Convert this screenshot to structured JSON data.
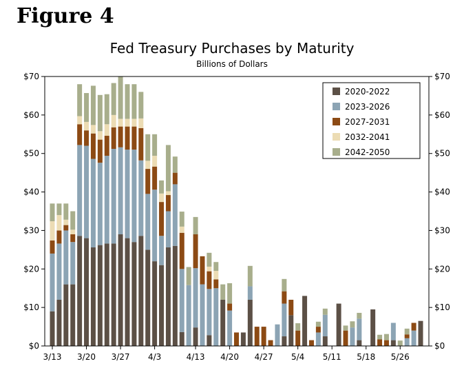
{
  "figure_label": "Figure 4",
  "chart_data": {
    "type": "bar",
    "stacked": true,
    "title": "Fed Treasury Purchases by Maturity",
    "subtitle": "Billions of Dollars",
    "xlabel": "",
    "ylabel": "",
    "ylim": [
      0,
      70
    ],
    "yticks": [
      0,
      10,
      20,
      30,
      40,
      50,
      60,
      70
    ],
    "ytick_labels": [
      "$0",
      "$10",
      "$20",
      "$30",
      "$40",
      "$50",
      "$60",
      "$70"
    ],
    "xtick_labels": [
      "3/13",
      "3/20",
      "3/27",
      "4/3",
      "4/13",
      "4/20",
      "4/27",
      "5/4",
      "5/11",
      "5/18",
      "5/26"
    ],
    "xtick_index": [
      0,
      5,
      10,
      15,
      21,
      26,
      31,
      36,
      41,
      46,
      51
    ],
    "legend_position": "top-right",
    "series": [
      {
        "name": "2020-2022",
        "color": "#5c5046",
        "values": [
          9,
          12,
          16,
          16,
          28.6,
          28,
          25.6,
          26.2,
          26.6,
          26.6,
          29,
          28,
          27,
          28.6,
          25,
          22,
          21,
          25.6,
          26,
          3.6,
          0,
          4.8,
          0,
          2.8,
          0,
          12,
          0,
          0,
          3.5,
          12,
          0,
          0,
          0,
          0,
          2.5,
          8,
          0,
          13,
          0,
          0,
          2.5,
          0,
          11,
          0,
          0,
          1.5,
          0,
          9.5,
          0,
          0,
          1.5,
          0,
          0,
          0,
          6.5
        ]
      },
      {
        "name": "2023-2026",
        "color": "#8ca4b4",
        "values": [
          15,
          14.6,
          14,
          11,
          23.6,
          24,
          23,
          21.4,
          22.8,
          24.6,
          22.6,
          23,
          24,
          19.6,
          14.5,
          18.6,
          7.6,
          9.4,
          16,
          16.4,
          15.8,
          15.4,
          16,
          12,
          15,
          0,
          9.2,
          0,
          0,
          3.5,
          0,
          0,
          0,
          5.6,
          8.5,
          0,
          0,
          0,
          0,
          3.5,
          5.6,
          0,
          0,
          0,
          4.8,
          5.6,
          0,
          0,
          0,
          0,
          4.5,
          0,
          2,
          4,
          0
        ]
      },
      {
        "name": "2027-2031",
        "color": "#8c4a14",
        "values": [
          3.4,
          3.4,
          1.4,
          2,
          5.4,
          4,
          6.6,
          6,
          5.2,
          5.6,
          5.4,
          6,
          6,
          8.4,
          6.5,
          6,
          8.8,
          4.2,
          3,
          9.4,
          0,
          8.8,
          7.3,
          4.6,
          2.3,
          0,
          1.8,
          3.5,
          0,
          0,
          5,
          5,
          1.5,
          0,
          3.2,
          4,
          4,
          0,
          1.5,
          1.5,
          0,
          0,
          0,
          4,
          0,
          0,
          0,
          0,
          1.7,
          1.5,
          0,
          0,
          1,
          2,
          0
        ]
      },
      {
        "name": "2032-2041",
        "color": "#ecdcb4",
        "values": [
          5,
          4,
          1.4,
          1.2,
          2.1,
          2.2,
          2.2,
          2.2,
          3,
          3.2,
          2,
          2,
          2,
          2.5,
          2.1,
          2.8,
          2.2,
          1,
          0,
          1.6,
          0,
          0,
          0,
          1.2,
          2.2,
          0,
          0,
          0,
          0,
          0,
          0,
          0,
          0,
          0,
          0,
          0,
          0,
          0,
          0,
          0,
          0,
          0,
          0,
          0,
          0,
          0,
          0,
          0,
          0,
          0,
          0,
          0,
          0,
          0,
          0
        ]
      },
      {
        "name": "2042-2050",
        "color": "#a8ae8c",
        "values": [
          4.6,
          3,
          4.2,
          4.8,
          8.3,
          7.5,
          10.2,
          9.4,
          7.8,
          8.3,
          11,
          9,
          9,
          6.9,
          6.9,
          5.6,
          3.4,
          12,
          4.2,
          3.9,
          4.7,
          4.5,
          0,
          3.6,
          2.3,
          4,
          5.3,
          0,
          0,
          5.3,
          0,
          0,
          0,
          0,
          3.2,
          0,
          1.9,
          0,
          0,
          1.3,
          1.6,
          0,
          0,
          1.3,
          1.6,
          1.5,
          0,
          0,
          1.2,
          1.6,
          0,
          1.4,
          1.5,
          0,
          0
        ]
      }
    ]
  }
}
